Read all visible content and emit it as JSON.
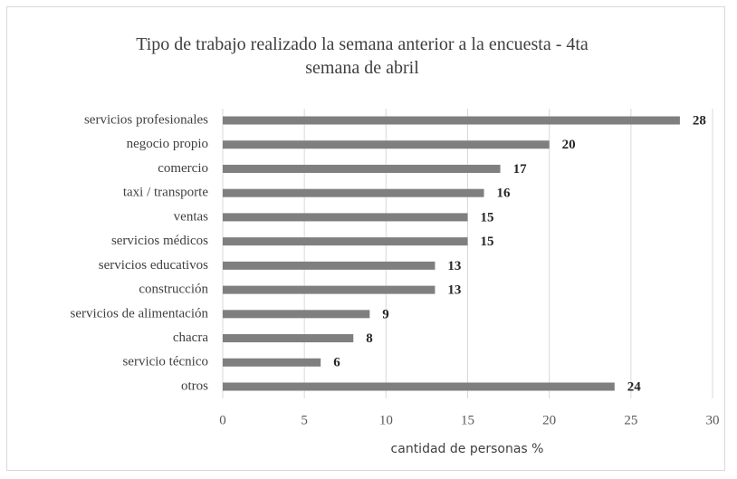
{
  "chart_data": {
    "type": "bar",
    "orientation": "horizontal",
    "title": "Tipo de trabajo realizado la semana anterior a la encuesta - 4ta semana de abril",
    "categories": [
      "servicios profesionales",
      "negocio propio",
      "comercio",
      "taxi / transporte",
      "ventas",
      "servicios médicos",
      "servicios educativos",
      "construcción",
      "servicios de alimentación",
      "chacra",
      "servicio técnico",
      "otros"
    ],
    "values": [
      28,
      20,
      17,
      16,
      15,
      15,
      13,
      13,
      9,
      8,
      6,
      24
    ],
    "color": "#7f7f7f",
    "xlabel": "cantidad de personas %",
    "xlim": [
      0,
      30
    ],
    "xticks": [
      0,
      5,
      10,
      15,
      20,
      25,
      30
    ],
    "grid": true
  }
}
